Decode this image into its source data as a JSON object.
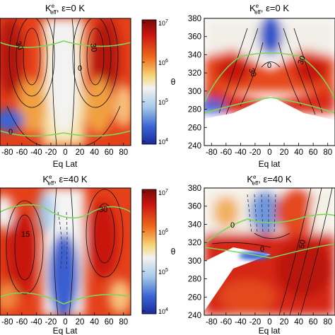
{
  "chart_data": [
    {
      "type": "heatmap",
      "panel": "top-left",
      "title_symbol": "K",
      "title_sup": "e",
      "title_sub": "eff",
      "title_rest": ", ε=0 K",
      "xlabel": "Eq Lat",
      "xlim": [
        -90,
        90
      ],
      "xticks": [
        "-80",
        "-60",
        "-40",
        "-20",
        "0",
        "20",
        "40",
        "60",
        "80"
      ],
      "xtick_values": [
        -80,
        -60,
        -40,
        -20,
        0,
        20,
        40,
        60,
        80
      ],
      "contour_labels": [
        "30",
        "30",
        "0",
        "0"
      ],
      "colorbar": {
        "ticks": [
          "10",
          "10",
          "10",
          "10"
        ],
        "exponents": [
          "7",
          "6",
          "5",
          "4"
        ],
        "scale": "log"
      }
    },
    {
      "type": "heatmap",
      "panel": "top-right",
      "title_symbol": "K",
      "title_sup": "e",
      "title_sub": "eff",
      "title_rest": ", ε=0 K",
      "xlabel": "Eq lat",
      "ylabel": "θ",
      "xlim": [
        -90,
        90
      ],
      "ylim": [
        240,
        380
      ],
      "xticks": [
        "-80",
        "-60",
        "-40",
        "-20",
        "0",
        "20",
        "40",
        "60",
        "80"
      ],
      "xtick_values": [
        -80,
        -60,
        -40,
        -20,
        0,
        20,
        40,
        60,
        80
      ],
      "yticks": [
        "380",
        "360",
        "340",
        "320",
        "300",
        "280",
        "260",
        "240"
      ],
      "ytick_values": [
        380,
        360,
        340,
        320,
        300,
        280,
        260,
        240
      ],
      "contour_labels": [
        "0",
        "30",
        "30"
      ]
    },
    {
      "type": "heatmap",
      "panel": "bottom-left",
      "title_symbol": "K",
      "title_sup": "e",
      "title_sub": "eff",
      "title_rest": ", ε=40 K",
      "xlabel": "Eq Lat",
      "xlim": [
        -90,
        90
      ],
      "xticks": [
        "-80",
        "-60",
        "-40",
        "-20",
        "0",
        "20",
        "40",
        "60",
        "80"
      ],
      "xtick_values": [
        -80,
        -60,
        -40,
        -20,
        0,
        20,
        40,
        60,
        80
      ],
      "contour_labels": [
        "15",
        "30"
      ],
      "colorbar": {
        "ticks": [
          "10",
          "10",
          "10",
          "10"
        ],
        "exponents": [
          "7",
          "6",
          "5",
          "4"
        ],
        "scale": "log"
      }
    },
    {
      "type": "heatmap",
      "panel": "bottom-right",
      "title_symbol": "K",
      "title_sup": "e",
      "title_sub": "eff",
      "title_rest": ", ε=40 K",
      "xlabel": "Eq lat",
      "ylabel": "θ",
      "xlim": [
        -90,
        90
      ],
      "ylim": [
        240,
        380
      ],
      "xticks": [
        "-80",
        "-60",
        "-40",
        "-20",
        "0",
        "20",
        "40",
        "60",
        "80"
      ],
      "xtick_values": [
        -80,
        -60,
        -40,
        -20,
        0,
        20,
        40,
        60,
        80
      ],
      "yticks": [
        "380",
        "360",
        "340",
        "320",
        "300",
        "280",
        "260",
        "240"
      ],
      "ytick_values": [
        380,
        360,
        340,
        320,
        300,
        280,
        260,
        240
      ],
      "contour_labels": [
        "0",
        "0",
        "50"
      ]
    }
  ],
  "colors": {
    "red": "#c8160f",
    "orange": "#f08a1e",
    "yellow": "#f4d57e",
    "white": "#ffffff",
    "lightblue": "#a8cbe8",
    "blue": "#1f3fbf",
    "green": "#7cd65a"
  }
}
